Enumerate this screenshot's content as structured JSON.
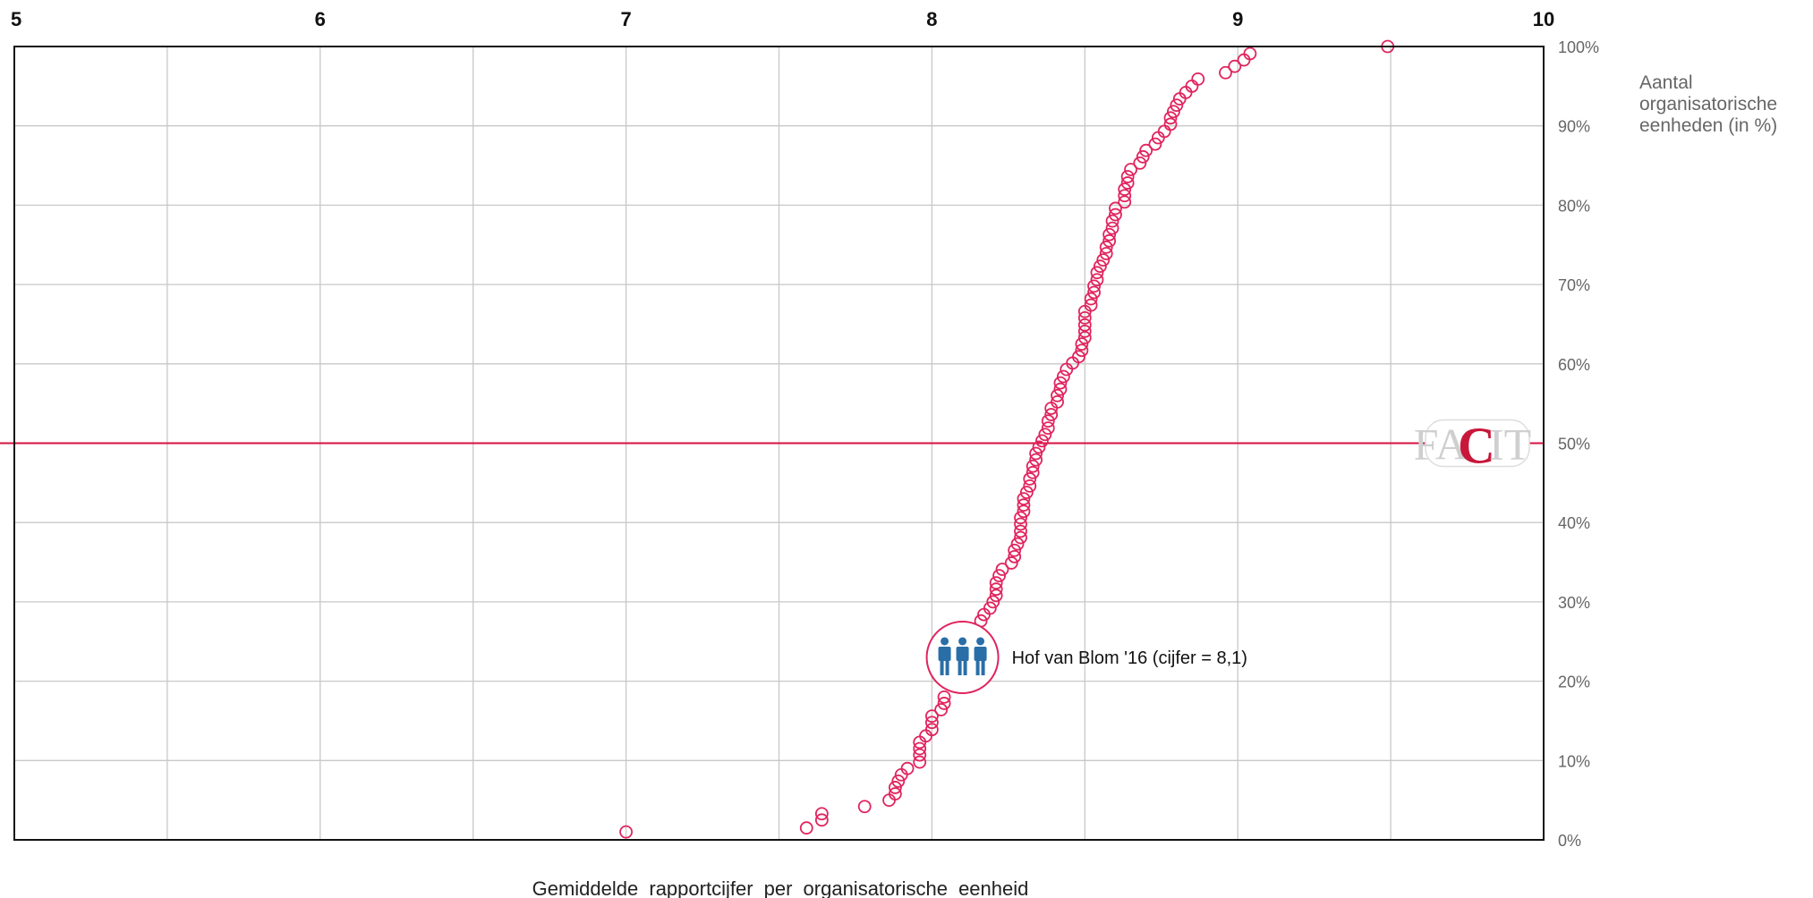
{
  "chart_data": {
    "type": "scatter",
    "title": "",
    "xlabel": "Gemiddelde  rapportcijfer  per  organisatorische  eenheid",
    "ylabel": [
      "Aantal",
      "organisatorische",
      "eenheden (in %)"
    ],
    "xlim": [
      5,
      10
    ],
    "ylim": [
      0,
      100
    ],
    "x_ticks": [
      "5",
      "6",
      "7",
      "8",
      "9",
      "10"
    ],
    "y_ticks": [
      "0%",
      "10%",
      "20%",
      "30%",
      "40%",
      "50%",
      "60%",
      "70%",
      "80%",
      "90%",
      "100%"
    ],
    "grid": true,
    "reference_line": {
      "y": 50
    },
    "marker_color": "#e0245e",
    "reference_color": "#d4123f",
    "highlight": {
      "label": "Hof van Blom '16 (cijfer = 8,1)",
      "x": 8.1,
      "y": 23,
      "icon": "people-icon"
    },
    "logo": {
      "text_left": "FA",
      "text_c": "C",
      "text_right": "IT"
    },
    "points": [
      [
        7.0,
        1
      ],
      [
        7.59,
        1.5
      ],
      [
        7.64,
        2.5
      ],
      [
        7.64,
        3.3
      ],
      [
        7.78,
        4.2
      ],
      [
        7.86,
        5
      ],
      [
        7.88,
        5.8
      ],
      [
        7.88,
        6.6
      ],
      [
        7.89,
        7.4
      ],
      [
        7.9,
        8.2
      ],
      [
        7.92,
        9
      ],
      [
        7.96,
        9.8
      ],
      [
        7.96,
        10.7
      ],
      [
        7.96,
        11.5
      ],
      [
        7.96,
        12.3
      ],
      [
        7.98,
        13.1
      ],
      [
        8.0,
        13.9
      ],
      [
        8.0,
        14.8
      ],
      [
        8.0,
        15.6
      ],
      [
        8.03,
        16.4
      ],
      [
        8.04,
        17.2
      ],
      [
        8.04,
        18
      ],
      [
        8.16,
        27.6
      ],
      [
        8.17,
        28.4
      ],
      [
        8.19,
        29.2
      ],
      [
        8.2,
        30
      ],
      [
        8.21,
        30.8
      ],
      [
        8.21,
        31.6
      ],
      [
        8.21,
        32.4
      ],
      [
        8.22,
        33.3
      ],
      [
        8.23,
        34.1
      ],
      [
        8.26,
        34.9
      ],
      [
        8.27,
        35.7
      ],
      [
        8.27,
        36.5
      ],
      [
        8.28,
        37.3
      ],
      [
        8.29,
        38.1
      ],
      [
        8.29,
        38.9
      ],
      [
        8.29,
        39.8
      ],
      [
        8.29,
        40.6
      ],
      [
        8.3,
        41.4
      ],
      [
        8.3,
        42.2
      ],
      [
        8.3,
        43
      ],
      [
        8.31,
        43.8
      ],
      [
        8.32,
        44.6
      ],
      [
        8.32,
        45.5
      ],
      [
        8.33,
        46.3
      ],
      [
        8.33,
        47.1
      ],
      [
        8.34,
        47.9
      ],
      [
        8.34,
        48.7
      ],
      [
        8.35,
        49.5
      ],
      [
        8.36,
        50.3
      ],
      [
        8.37,
        51.1
      ],
      [
        8.38,
        51.9
      ],
      [
        8.38,
        52.8
      ],
      [
        8.39,
        53.6
      ],
      [
        8.39,
        54.4
      ],
      [
        8.41,
        55.2
      ],
      [
        8.41,
        56
      ],
      [
        8.42,
        56.8
      ],
      [
        8.42,
        57.6
      ],
      [
        8.43,
        58.4
      ],
      [
        8.44,
        59.3
      ],
      [
        8.46,
        60.1
      ],
      [
        8.48,
        60.9
      ],
      [
        8.49,
        61.7
      ],
      [
        8.49,
        62.5
      ],
      [
        8.5,
        63.3
      ],
      [
        8.5,
        64.1
      ],
      [
        8.5,
        64.9
      ],
      [
        8.5,
        65.8
      ],
      [
        8.5,
        66.6
      ],
      [
        8.52,
        67.4
      ],
      [
        8.52,
        68.2
      ],
      [
        8.53,
        69
      ],
      [
        8.53,
        69.8
      ],
      [
        8.54,
        70.6
      ],
      [
        8.54,
        71.5
      ],
      [
        8.55,
        72.3
      ],
      [
        8.56,
        73.1
      ],
      [
        8.57,
        73.9
      ],
      [
        8.57,
        74.7
      ],
      [
        8.58,
        75.5
      ],
      [
        8.58,
        76.3
      ],
      [
        8.59,
        77.1
      ],
      [
        8.59,
        78
      ],
      [
        8.6,
        78.8
      ],
      [
        8.6,
        79.6
      ],
      [
        8.63,
        80.4
      ],
      [
        8.63,
        81.2
      ],
      [
        8.63,
        82
      ],
      [
        8.64,
        82.8
      ],
      [
        8.64,
        83.6
      ],
      [
        8.65,
        84.5
      ],
      [
        8.68,
        85.3
      ],
      [
        8.69,
        86.1
      ],
      [
        8.7,
        86.9
      ],
      [
        8.73,
        87.7
      ],
      [
        8.74,
        88.5
      ],
      [
        8.76,
        89.3
      ],
      [
        8.78,
        90.2
      ],
      [
        8.78,
        91
      ],
      [
        8.79,
        91.8
      ],
      [
        8.8,
        92.6
      ],
      [
        8.81,
        93.4
      ],
      [
        8.83,
        94.2
      ],
      [
        8.85,
        95
      ],
      [
        8.87,
        95.9
      ],
      [
        8.96,
        96.7
      ],
      [
        8.99,
        97.5
      ],
      [
        9.02,
        98.3
      ],
      [
        9.04,
        99.1
      ],
      [
        9.49,
        100
      ]
    ]
  }
}
